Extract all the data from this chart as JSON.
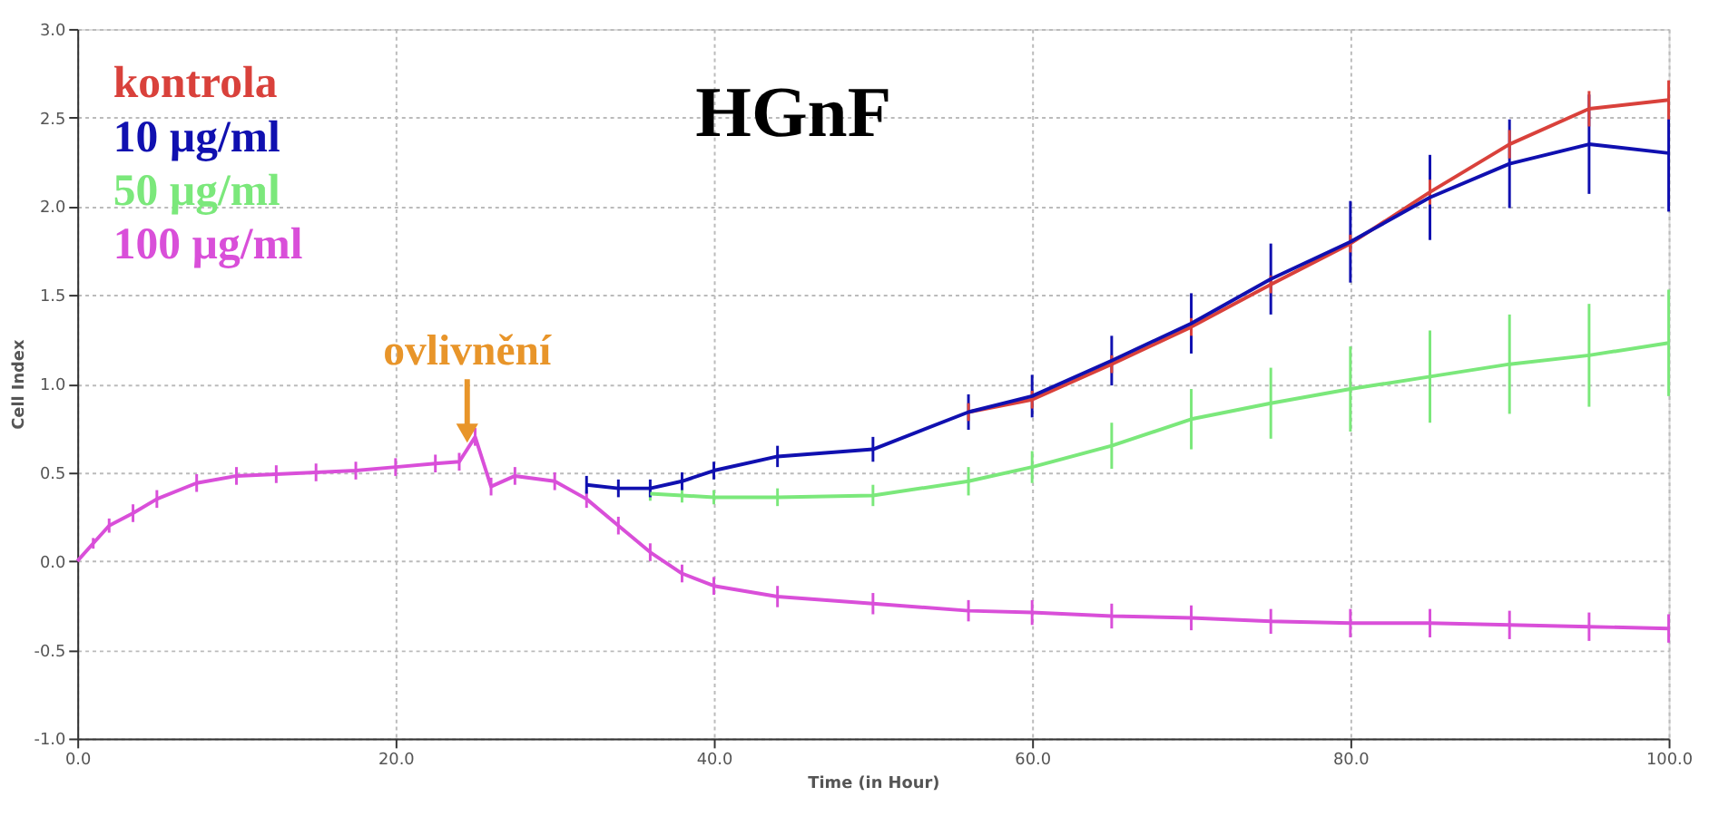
{
  "chart_data": {
    "type": "line",
    "annotations": [
      "HGnF",
      {
        "text": "ovlivnění",
        "x": 24.5,
        "y": 0.6
      }
    ],
    "xlabel": "Time (in Hour)",
    "ylabel": "Cell Index",
    "x": [
      0,
      1,
      2,
      3.5,
      5,
      7.5,
      10,
      12.5,
      15,
      17.5,
      20,
      22.5,
      24,
      25,
      26,
      27.5,
      30,
      32,
      34,
      36,
      38,
      40,
      44,
      50,
      56,
      60,
      65,
      70,
      75,
      80,
      85,
      90,
      95,
      100
    ],
    "series": [
      {
        "name": "kontrola",
        "color": "#d9413b",
        "x": [
          56,
          60,
          65,
          70,
          75,
          80,
          85,
          90,
          95,
          100
        ],
        "values": [
          0.84,
          0.91,
          1.11,
          1.32,
          1.56,
          1.79,
          2.08,
          2.35,
          2.55,
          2.6
        ],
        "errors": [
          0.05,
          0.05,
          0.05,
          0.05,
          0.05,
          0.05,
          0.07,
          0.08,
          0.1,
          0.11
        ]
      },
      {
        "name": "10 µg/ml",
        "color": "#1010b0",
        "x": [
          32,
          34,
          36,
          38,
          40,
          44,
          50,
          56,
          60,
          65,
          70,
          75,
          80,
          85,
          90,
          95,
          100
        ],
        "values": [
          0.43,
          0.41,
          0.41,
          0.45,
          0.51,
          0.59,
          0.63,
          0.84,
          0.93,
          1.13,
          1.34,
          1.59,
          1.8,
          2.05,
          2.24,
          2.35,
          2.3
        ],
        "errors": [
          0.05,
          0.05,
          0.05,
          0.05,
          0.05,
          0.06,
          0.07,
          0.1,
          0.12,
          0.14,
          0.17,
          0.2,
          0.23,
          0.24,
          0.25,
          0.28,
          0.33
        ]
      },
      {
        "name": "50 µg/ml",
        "color": "#7be87b",
        "x": [
          36,
          38,
          40,
          44,
          50,
          56,
          60,
          65,
          70,
          75,
          80,
          85,
          90,
          95,
          100
        ],
        "values": [
          0.38,
          0.37,
          0.36,
          0.36,
          0.37,
          0.45,
          0.53,
          0.65,
          0.8,
          0.89,
          0.97,
          1.04,
          1.11,
          1.16,
          1.23
        ],
        "errors": [
          0.04,
          0.04,
          0.04,
          0.05,
          0.06,
          0.08,
          0.09,
          0.13,
          0.17,
          0.2,
          0.24,
          0.26,
          0.28,
          0.29,
          0.3
        ]
      },
      {
        "name": "100 µg/ml",
        "color": "#d94fd9",
        "values": [
          0,
          0.1,
          0.2,
          0.27,
          0.35,
          0.44,
          0.48,
          0.49,
          0.5,
          0.51,
          0.53,
          0.55,
          0.56,
          0.7,
          0.42,
          0.48,
          0.45,
          0.35,
          0.2,
          0.05,
          -0.07,
          -0.14,
          -0.2,
          -0.24,
          -0.28,
          -0.29,
          -0.31,
          -0.32,
          -0.34,
          -0.35,
          -0.35,
          -0.36,
          -0.37,
          -0.38
        ],
        "errors": [
          0,
          0.03,
          0.04,
          0.05,
          0.05,
          0.05,
          0.05,
          0.05,
          0.05,
          0.05,
          0.05,
          0.05,
          0.05,
          0.05,
          0.05,
          0.05,
          0.05,
          0.05,
          0.05,
          0.05,
          0.05,
          0.05,
          0.06,
          0.06,
          0.06,
          0.07,
          0.07,
          0.07,
          0.07,
          0.08,
          0.08,
          0.08,
          0.08,
          0.08
        ]
      }
    ],
    "xlim": [
      0,
      100
    ],
    "xticks": [
      {
        "value": 0,
        "label": "0.0"
      },
      {
        "value": 20,
        "label": "20.0"
      },
      {
        "value": 40,
        "label": "40.0"
      },
      {
        "value": 60,
        "label": "60.0"
      },
      {
        "value": 80,
        "label": "80.0"
      },
      {
        "value": 100,
        "label": "100.0"
      }
    ],
    "ylim": [
      -1,
      3
    ],
    "yticks": [
      {
        "value": -1,
        "label": "-1.0"
      },
      {
        "value": -0.5,
        "label": "-0.5"
      },
      {
        "value": 0,
        "label": "0.0"
      },
      {
        "value": 0.5,
        "label": "0.5"
      },
      {
        "value": 1,
        "label": "1.0"
      },
      {
        "value": 1.5,
        "label": "1.5"
      },
      {
        "value": 2,
        "label": "2.0"
      },
      {
        "value": 2.5,
        "label": "2.5"
      },
      {
        "value": 3,
        "label": "3.0"
      }
    ],
    "grid": true,
    "legend": "top left",
    "marker": "none",
    "line_style": "solid"
  }
}
